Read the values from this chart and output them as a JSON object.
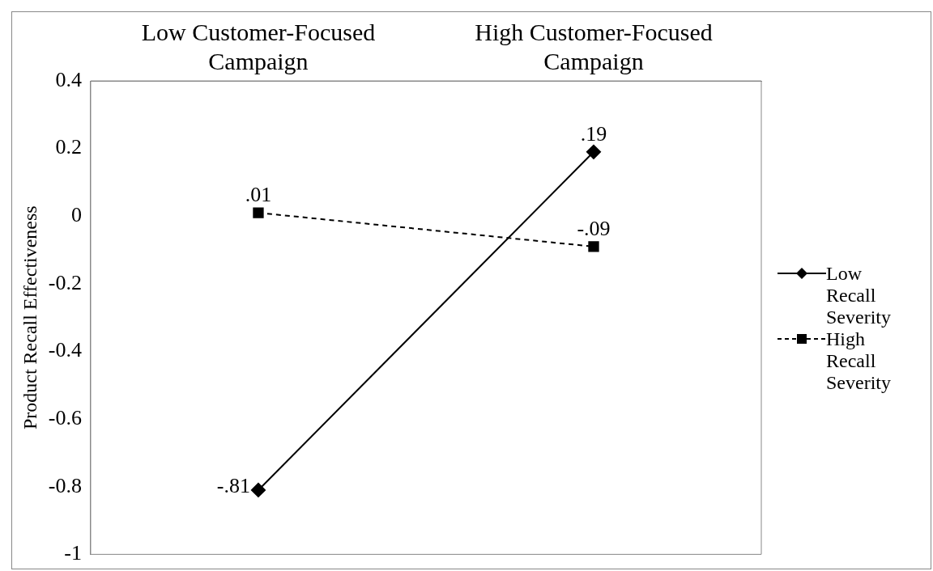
{
  "chart_data": {
    "type": "line",
    "ylabel": "Product Recall Effectiveness",
    "categories": [
      "Low Customer-Focused Campaign",
      "High Customer-Focused Campaign"
    ],
    "series": [
      {
        "name": "Low Recall Severity",
        "color": "#000000",
        "values": [
          -0.81,
          0.19
        ],
        "value_labels": [
          "-.81",
          ".19"
        ],
        "marker": "diamond",
        "line_style": "solid"
      },
      {
        "name": "High Recall Severity",
        "color": "#000000",
        "values": [
          0.01,
          -0.09
        ],
        "value_labels": [
          ".01",
          "-.09"
        ],
        "marker": "square",
        "line_style": "dashed"
      }
    ],
    "ylim": [
      -1,
      0.4
    ],
    "yticks": [
      -1,
      -0.8,
      -0.6,
      -0.4,
      -0.2,
      0,
      0.2,
      0.4
    ],
    "grid": false,
    "legend": "right"
  }
}
